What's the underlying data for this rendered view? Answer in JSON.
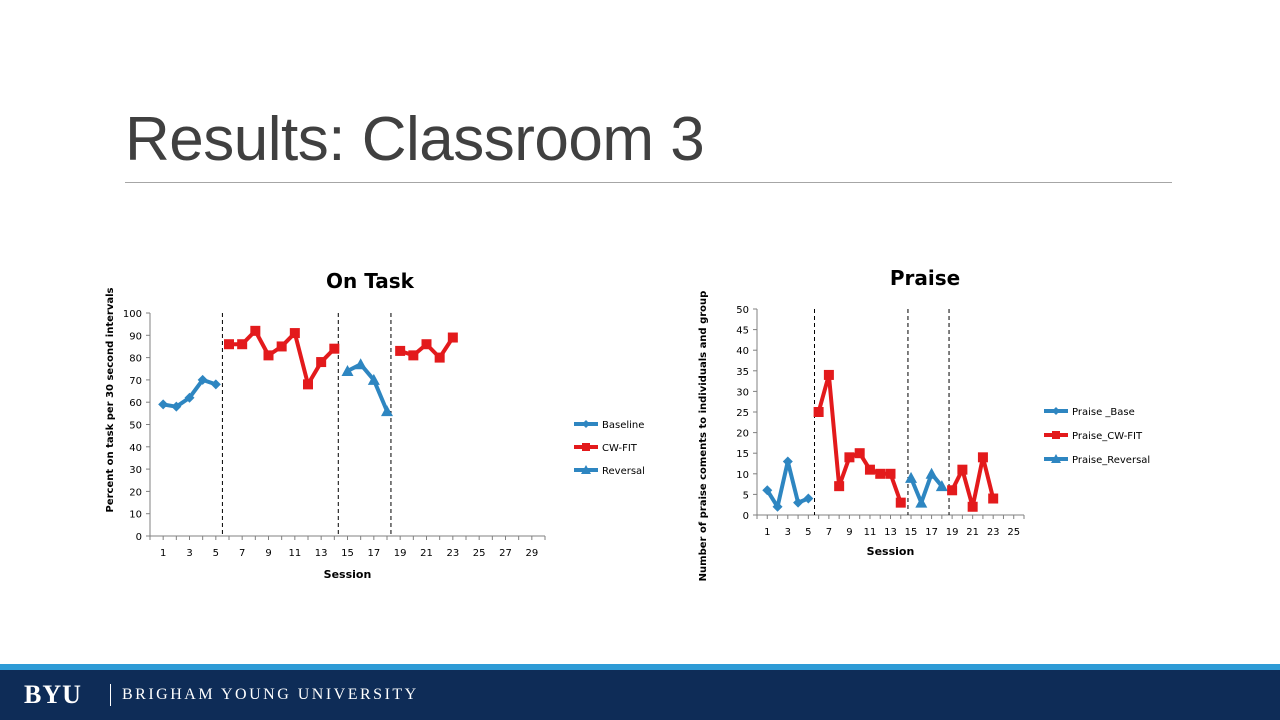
{
  "slide": {
    "title": "Results: Classroom 3"
  },
  "footer": {
    "logo": "BYU",
    "university": "BRIGHAM YOUNG UNIVERSITY"
  },
  "colors": {
    "baseline": "#2e86c1",
    "cwfit": "#e31a1c",
    "footer_bg": "#0e2c57",
    "footer_stripe": "#2e9bd6"
  },
  "chart_data": [
    {
      "type": "line",
      "title": "On Task",
      "xlabel": "Session",
      "ylabel": "Percent on task per 30 second intervals",
      "xlim": [
        1,
        30
      ],
      "ylim": [
        0,
        100
      ],
      "yticks": [
        0,
        10,
        20,
        30,
        40,
        50,
        60,
        70,
        80,
        90,
        100
      ],
      "xticks": [
        1,
        3,
        5,
        7,
        9,
        11,
        13,
        15,
        17,
        19,
        21,
        23,
        25,
        27,
        29
      ],
      "phase_lines": [
        5.5,
        14.3,
        18.3
      ],
      "legend_position": "right",
      "series": [
        {
          "name": "Baseline",
          "marker": "diamond",
          "color": "#2e86c1",
          "x": [
            1,
            2,
            3,
            4,
            5
          ],
          "y": [
            59,
            58,
            62,
            70,
            68
          ]
        },
        {
          "name": "CW-FIT",
          "marker": "square",
          "color": "#e31a1c",
          "x": [
            6,
            7,
            8,
            9,
            10,
            11,
            12,
            13,
            14
          ],
          "y": [
            86,
            86,
            92,
            81,
            85,
            91,
            68,
            78,
            84
          ]
        },
        {
          "name": "Reversal",
          "marker": "triangle",
          "color": "#2e86c1",
          "x": [
            15,
            16,
            17,
            18
          ],
          "y": [
            74,
            77,
            70,
            56
          ]
        },
        {
          "name": "",
          "marker": "square",
          "color": "#e31a1c",
          "x": [
            19,
            20,
            21,
            22,
            23
          ],
          "y": [
            83,
            81,
            86,
            80,
            89
          ]
        }
      ]
    },
    {
      "type": "line",
      "title": "Praise",
      "xlabel": "Session",
      "ylabel": "Number of praise coments to individuals and group",
      "xlim": [
        1,
        26
      ],
      "ylim": [
        0,
        50
      ],
      "yticks": [
        0,
        5,
        10,
        15,
        20,
        25,
        30,
        35,
        40,
        45,
        50
      ],
      "xticks": [
        1,
        3,
        5,
        7,
        9,
        11,
        13,
        15,
        17,
        19,
        21,
        23,
        25
      ],
      "phase_lines": [
        5.6,
        14.7,
        18.7
      ],
      "legend_position": "right",
      "series": [
        {
          "name": "Praise _Base",
          "marker": "diamond",
          "color": "#2e86c1",
          "x": [
            1,
            2,
            3,
            4,
            5
          ],
          "y": [
            6,
            2,
            13,
            3,
            4
          ]
        },
        {
          "name": "Praise_CW-FIT",
          "marker": "square",
          "color": "#e31a1c",
          "x": [
            6,
            7,
            8,
            9,
            10,
            11,
            12,
            13,
            14
          ],
          "y": [
            25,
            34,
            7,
            14,
            15,
            11,
            10,
            10,
            3
          ]
        },
        {
          "name": "Praise_Reversal",
          "marker": "triangle",
          "color": "#2e86c1",
          "x": [
            15,
            16,
            17,
            18
          ],
          "y": [
            9,
            3,
            10,
            7
          ]
        },
        {
          "name": "",
          "marker": "square",
          "color": "#e31a1c",
          "x": [
            19,
            20,
            21,
            22,
            23
          ],
          "y": [
            6,
            11,
            2,
            14,
            4
          ]
        }
      ]
    }
  ]
}
